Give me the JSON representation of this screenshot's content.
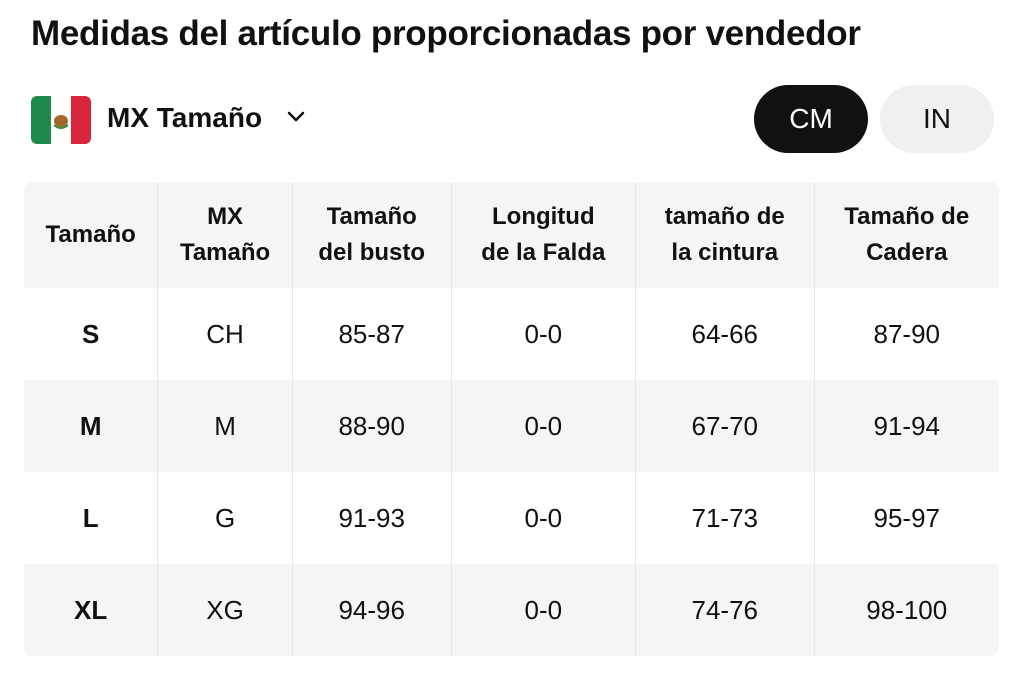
{
  "header": {
    "title": "Medidas del artículo proporcionadas por vendedor",
    "size_selector": "MX Tamaño",
    "units": [
      "CM",
      "IN"
    ]
  },
  "table": {
    "columns": [
      [
        "Tamaño"
      ],
      [
        "MX",
        "Tamaño"
      ],
      [
        "Tamaño",
        "del busto"
      ],
      [
        "Longitud",
        "de la Falda"
      ],
      [
        "tamaño de",
        "la cintura"
      ],
      [
        "Tamaño de",
        "Cadera"
      ]
    ],
    "rows": [
      [
        "S",
        "CH",
        "85-87",
        "0-0",
        "64-66",
        "87-90"
      ],
      [
        "M",
        "M",
        "88-90",
        "0-0",
        "67-70",
        "91-94"
      ],
      [
        "L",
        "G",
        "91-93",
        "0-0",
        "71-73",
        "95-97"
      ],
      [
        "XL",
        "XG",
        "94-96",
        "0-0",
        "74-76",
        "98-100"
      ]
    ]
  }
}
